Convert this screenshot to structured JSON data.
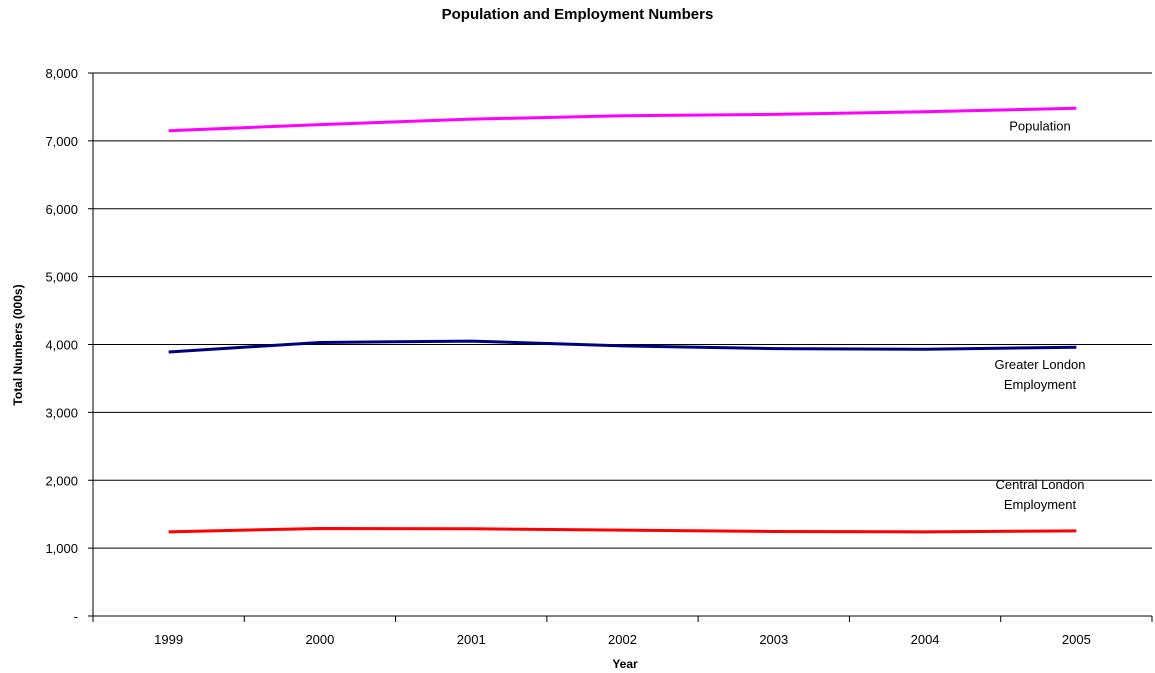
{
  "chart_data": {
    "type": "line",
    "title": "Population and Employment Numbers",
    "xlabel": "Year",
    "ylabel": "Total Numbers (000s)",
    "categories": [
      "1999",
      "2000",
      "2001",
      "2002",
      "2003",
      "2004",
      "2005"
    ],
    "ylim": [
      0,
      8000
    ],
    "yticks": [
      0,
      1000,
      2000,
      3000,
      4000,
      5000,
      6000,
      7000,
      8000
    ],
    "ytick_labels": [
      "-",
      "1,000",
      "2,000",
      "3,000",
      "4,000",
      "5,000",
      "6,000",
      "7,000",
      "8,000"
    ],
    "grid": true,
    "series": [
      {
        "name": "Population",
        "label_lines": [
          "Population"
        ],
        "color": "#ff00ff",
        "values": [
          7150,
          7240,
          7320,
          7370,
          7390,
          7430,
          7480
        ]
      },
      {
        "name": "Greater London Employment",
        "label_lines": [
          "Greater London",
          "Employment"
        ],
        "color": "#000080",
        "values": [
          3890,
          4030,
          4050,
          3980,
          3940,
          3930,
          3960
        ]
      },
      {
        "name": "Central London Employment",
        "label_lines": [
          "Central London",
          "Employment"
        ],
        "color": "#ff0000",
        "values": [
          1240,
          1290,
          1285,
          1265,
          1245,
          1240,
          1255
        ]
      }
    ]
  }
}
